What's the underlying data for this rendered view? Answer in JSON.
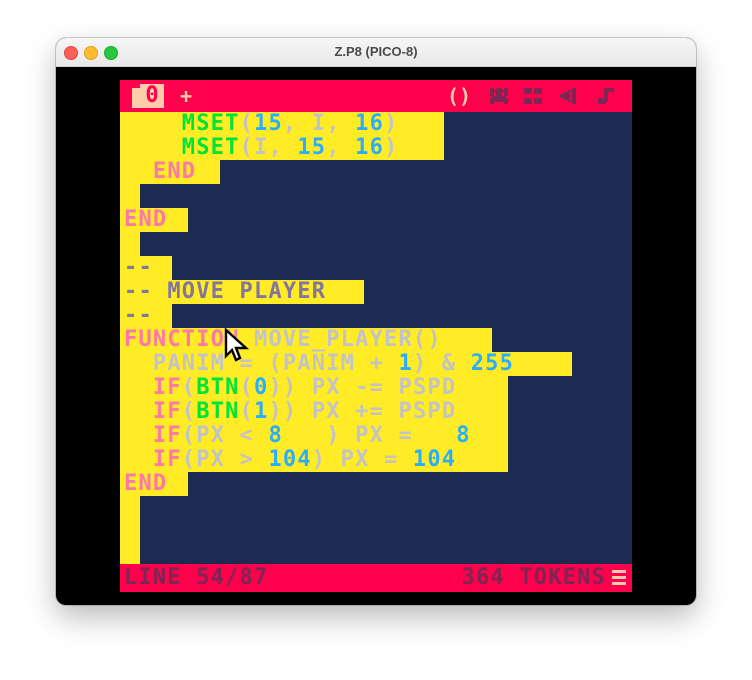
{
  "window": {
    "title": "Z.P8 (PICO-8)"
  },
  "topbar": {
    "tab_current": "0",
    "tab_add": "+",
    "icons": [
      "code-icon",
      "sprite-icon",
      "map-icon",
      "sfx-icon",
      "music-icon"
    ],
    "code_icon_glyph": "()"
  },
  "colors": {
    "background": "#1d2b53",
    "highlight": "#ffec27",
    "bar": "#ff004d",
    "keyword": "#ff77a8",
    "function": "#00e436",
    "number": "#29adff",
    "identifier": "#c2c3c7",
    "paren": "#c2c3c7",
    "comment": "#83769c"
  },
  "code": [
    {
      "hl": 5,
      "tokens": [
        {
          "t": "    ",
          "c": "identifier"
        },
        {
          "t": "MSET",
          "c": "function"
        },
        {
          "t": "(",
          "c": "paren"
        },
        {
          "t": "15",
          "c": "number"
        },
        {
          "t": ", ",
          "c": "paren"
        },
        {
          "t": "I",
          "c": "identifier"
        },
        {
          "t": ", ",
          "c": "paren"
        },
        {
          "t": "16",
          "c": "number"
        },
        {
          "t": ")",
          "c": "paren"
        }
      ]
    },
    {
      "hl": 5,
      "tokens": [
        {
          "t": "    ",
          "c": "identifier"
        },
        {
          "t": "MSET",
          "c": "function"
        },
        {
          "t": "(",
          "c": "paren"
        },
        {
          "t": "I",
          "c": "identifier"
        },
        {
          "t": ", ",
          "c": "paren"
        },
        {
          "t": "15",
          "c": "number"
        },
        {
          "t": ", ",
          "c": "paren"
        },
        {
          "t": "16",
          "c": "number"
        },
        {
          "t": ")",
          "c": "paren"
        }
      ]
    },
    {
      "hl": 5,
      "tokens": [
        {
          "t": "  ",
          "c": "identifier"
        },
        {
          "t": "END",
          "c": "keyword"
        }
      ]
    },
    {
      "hl": 5,
      "tokens": []
    },
    {
      "hl": 5,
      "tokens": [
        {
          "t": "END",
          "c": "keyword"
        }
      ]
    },
    {
      "hl": 5,
      "tokens": []
    },
    {
      "hl": 5,
      "tokens": [
        {
          "t": "--",
          "c": "comment"
        }
      ]
    },
    {
      "hl": 5,
      "tokens": [
        {
          "t": "-- MOVE PLAYER",
          "c": "comment"
        }
      ]
    },
    {
      "hl": 5,
      "tokens": [
        {
          "t": "--",
          "c": "comment"
        }
      ]
    },
    {
      "hl": 5,
      "tokens": [
        {
          "t": "FUNCTION",
          "c": "keyword"
        },
        {
          "t": " MOVE_PLAYER",
          "c": "identifier"
        },
        {
          "t": "()",
          "c": "paren"
        }
      ]
    },
    {
      "hl": 5,
      "tokens": [
        {
          "t": "  PANIM = (PANIM + ",
          "c": "identifier"
        },
        {
          "t": "1",
          "c": "number"
        },
        {
          "t": ") & ",
          "c": "identifier"
        },
        {
          "t": "255",
          "c": "number"
        }
      ]
    },
    {
      "hl": 5,
      "tokens": [
        {
          "t": "  ",
          "c": "identifier"
        },
        {
          "t": "IF",
          "c": "keyword"
        },
        {
          "t": "(",
          "c": "paren"
        },
        {
          "t": "BTN",
          "c": "function"
        },
        {
          "t": "(",
          "c": "paren"
        },
        {
          "t": "0",
          "c": "number"
        },
        {
          "t": ")) PX -= PSPD",
          "c": "identifier"
        }
      ]
    },
    {
      "hl": 5,
      "tokens": [
        {
          "t": "  ",
          "c": "identifier"
        },
        {
          "t": "IF",
          "c": "keyword"
        },
        {
          "t": "(",
          "c": "paren"
        },
        {
          "t": "BTN",
          "c": "function"
        },
        {
          "t": "(",
          "c": "paren"
        },
        {
          "t": "1",
          "c": "number"
        },
        {
          "t": ")) PX += PSPD",
          "c": "identifier"
        }
      ]
    },
    {
      "hl": 5,
      "tokens": [
        {
          "t": "  ",
          "c": "identifier"
        },
        {
          "t": "IF",
          "c": "keyword"
        },
        {
          "t": "(PX < ",
          "c": "identifier"
        },
        {
          "t": "8",
          "c": "number"
        },
        {
          "t": "   ) PX =   ",
          "c": "identifier"
        },
        {
          "t": "8",
          "c": "number"
        }
      ]
    },
    {
      "hl": 5,
      "tokens": [
        {
          "t": "  ",
          "c": "identifier"
        },
        {
          "t": "IF",
          "c": "keyword"
        },
        {
          "t": "(PX > ",
          "c": "identifier"
        },
        {
          "t": "104",
          "c": "number"
        },
        {
          "t": ") PX = ",
          "c": "identifier"
        },
        {
          "t": "104",
          "c": "number"
        }
      ]
    },
    {
      "hl": 5,
      "tokens": [
        {
          "t": "END",
          "c": "keyword"
        }
      ]
    }
  ],
  "status": {
    "line": "LINE 54/87",
    "tokens": "364 TOKENS"
  }
}
